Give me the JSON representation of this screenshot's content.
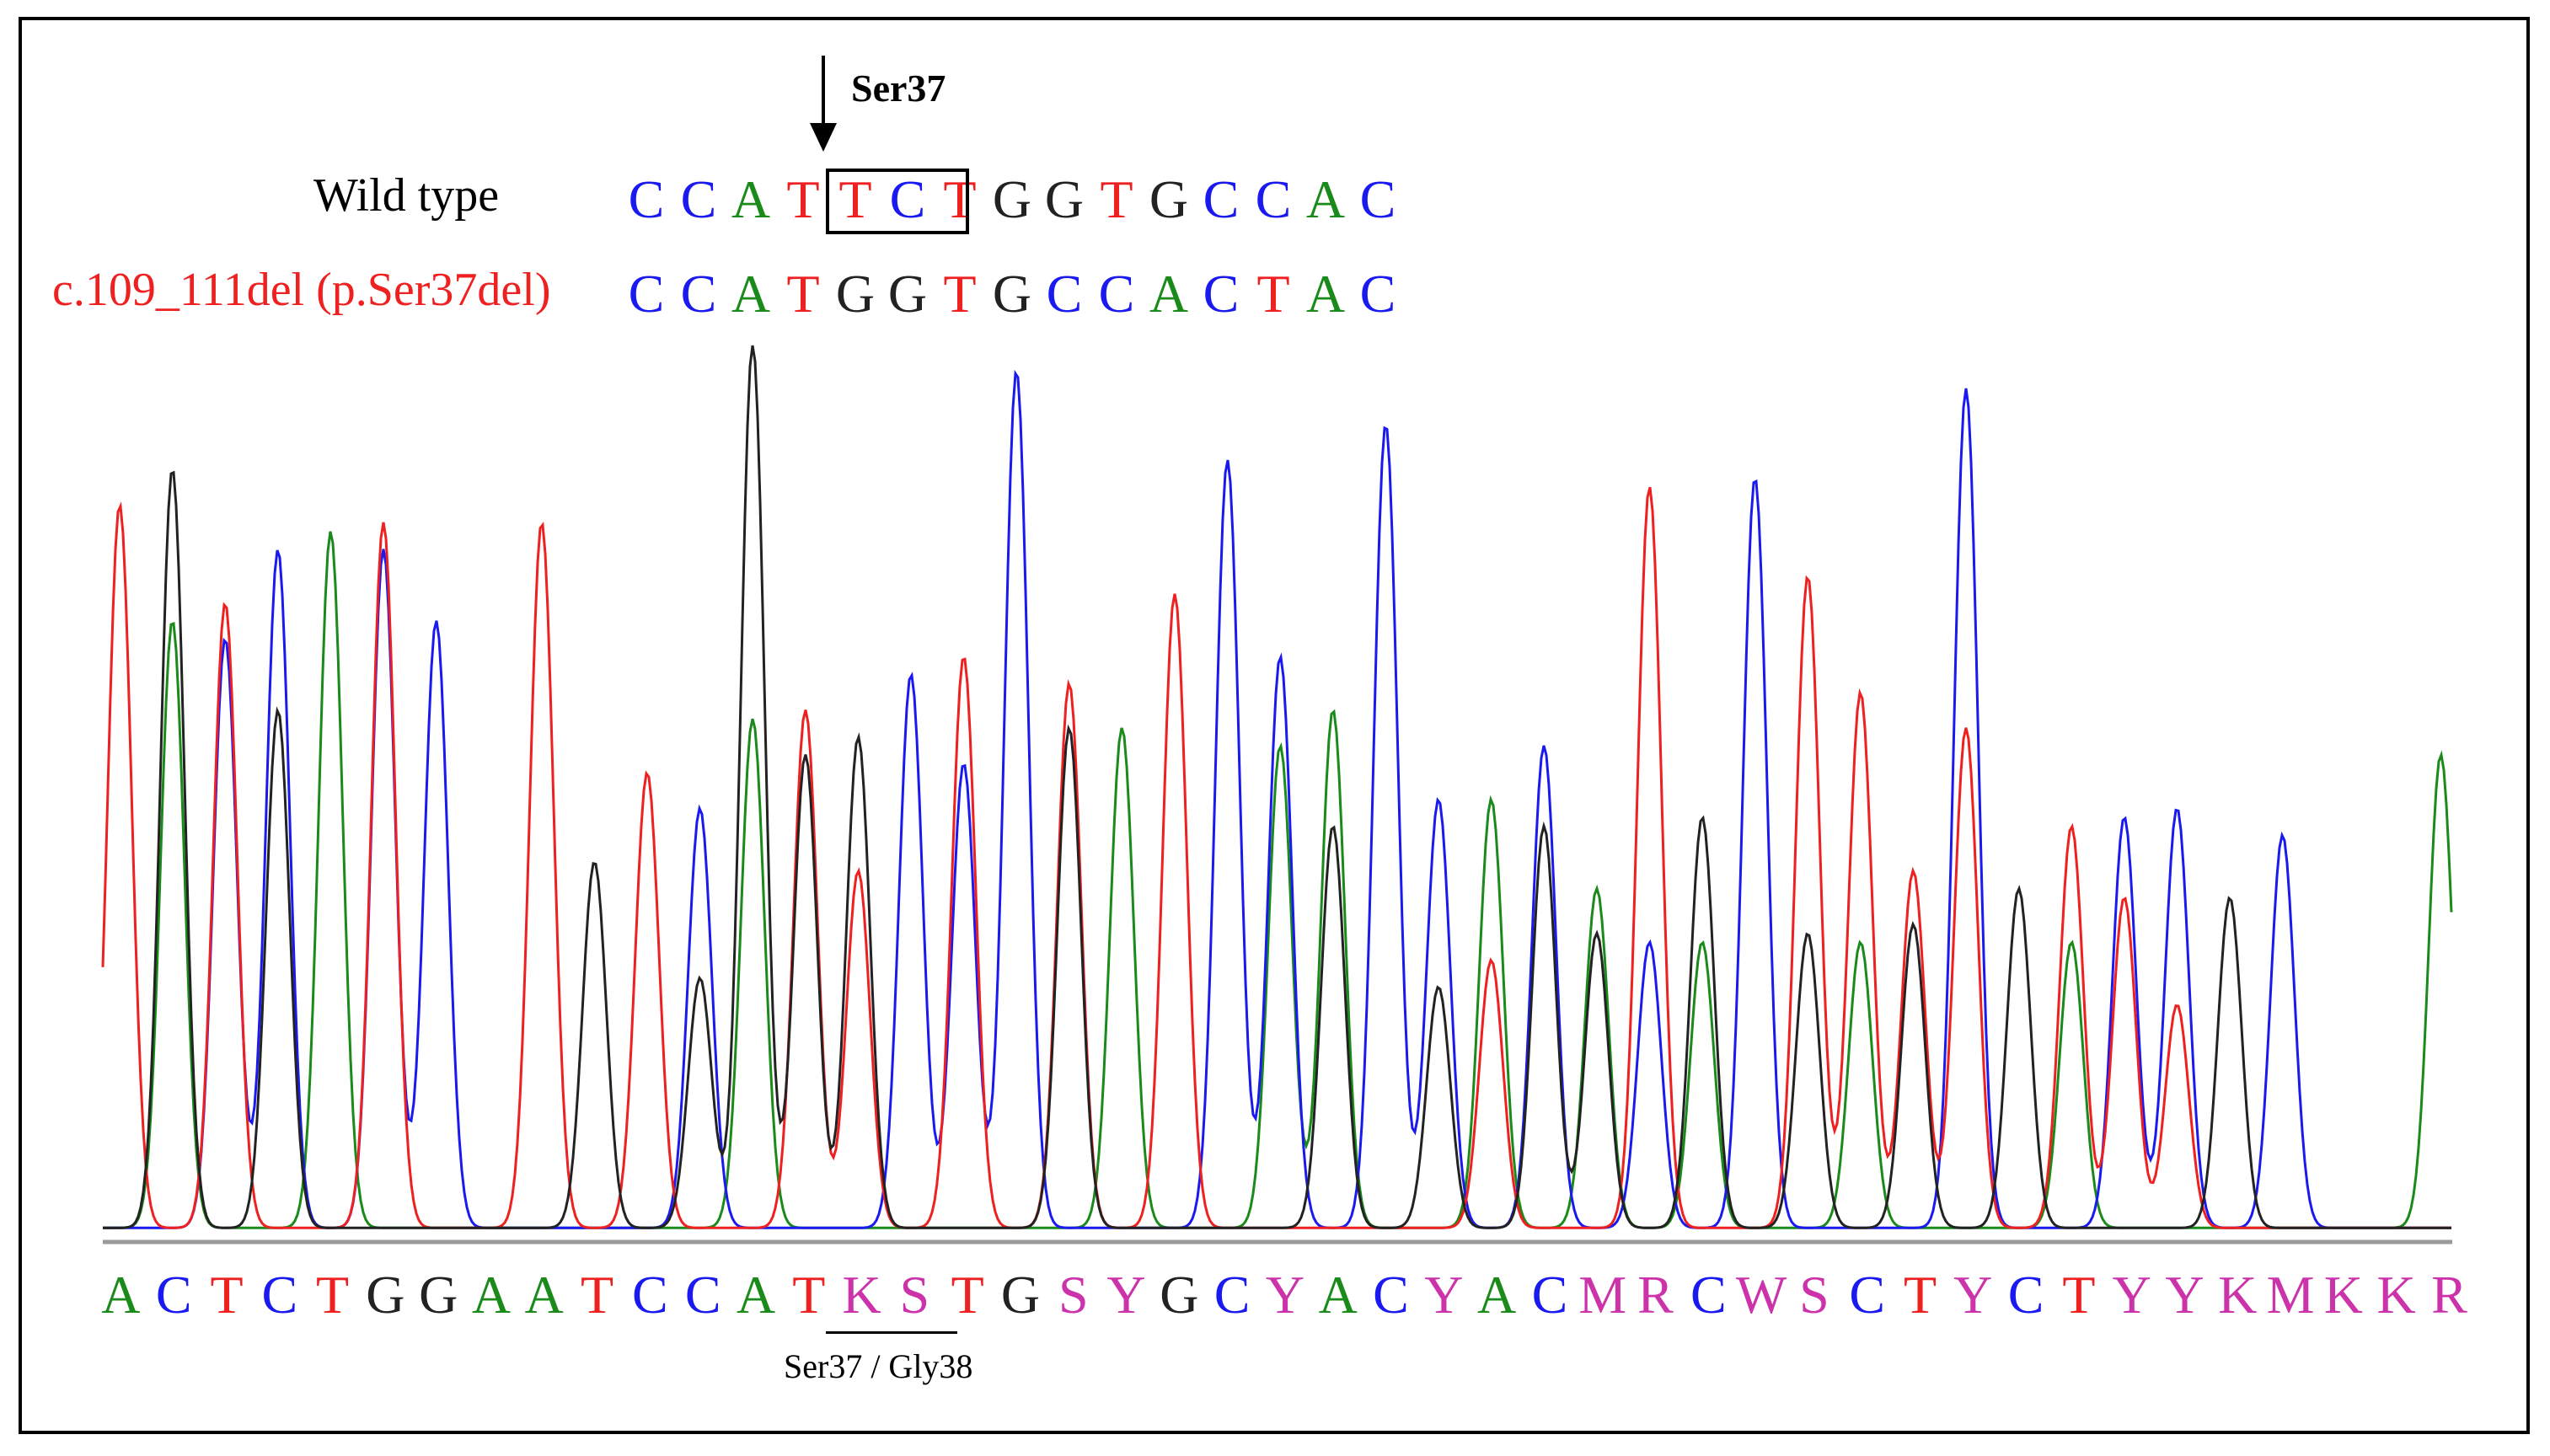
{
  "mutation_label": "Ser37",
  "wild_type_label": "Wild  type",
  "mutant_label": "c.109_111del (p.Ser37del)",
  "substitution_label": "Ser37 / Gly38",
  "colors": {
    "A": "#1a8a1a",
    "C": "#1a1af0",
    "G": "#222222",
    "T": "#ee2020",
    "ambig": "#cc33aa",
    "mutant_label": "#ee2020"
  },
  "wild_type_sequence": [
    "C",
    "C",
    "A",
    "T",
    "T",
    "C",
    "T",
    "G",
    "G",
    "T",
    "G",
    "C",
    "C",
    "A",
    "C"
  ],
  "mutant_sequence": [
    "C",
    "C",
    "A",
    "T",
    "G",
    "G",
    "T",
    "G",
    "C",
    "C",
    "A",
    "C",
    "T",
    "A",
    "C"
  ],
  "called_bases": [
    "A",
    "C",
    "T",
    "C",
    "T",
    "G",
    "G",
    "A",
    "A",
    "T",
    "C",
    "C",
    "A",
    "T",
    "K",
    "S",
    "T",
    "G",
    "S",
    "Y",
    "G",
    "C",
    "Y",
    "A",
    "C",
    "Y",
    "A",
    "C",
    "M",
    "R",
    "C",
    "W",
    "S",
    "C",
    "T",
    "Y",
    "C",
    "T",
    "Y",
    "Y",
    "K",
    "M",
    "K",
    "K",
    "R"
  ],
  "chart_data": {
    "type": "line",
    "title": "",
    "traces": [
      {
        "base": "A",
        "color": "#1a8a1a",
        "peaks": [
          [
            1,
            0.68
          ],
          [
            4,
            0.78
          ],
          [
            12,
            0.57
          ],
          [
            19,
            0.56
          ],
          [
            22,
            0.54
          ],
          [
            23,
            0.58
          ],
          [
            26,
            0.48
          ],
          [
            28,
            0.38
          ],
          [
            30,
            0.32
          ],
          [
            33,
            0.32
          ],
          [
            37,
            0.32
          ],
          [
            44,
            0.53
          ]
        ]
      },
      {
        "base": "C",
        "color": "#1a1af0",
        "peaks": [
          [
            2,
            0.66
          ],
          [
            3,
            0.76
          ],
          [
            5,
            0.76
          ],
          [
            6,
            0.68
          ],
          [
            11,
            0.47
          ],
          [
            15,
            0.62
          ],
          [
            16,
            0.52
          ],
          [
            17,
            0.96
          ],
          [
            21,
            0.86
          ],
          [
            22,
            0.64
          ],
          [
            24,
            0.9
          ],
          [
            25,
            0.48
          ],
          [
            27,
            0.54
          ],
          [
            29,
            0.32
          ],
          [
            31,
            0.84
          ],
          [
            35,
            0.94
          ],
          [
            38,
            0.46
          ],
          [
            39,
            0.47
          ],
          [
            41,
            0.44
          ]
        ]
      },
      {
        "base": "T",
        "color": "#ee2020",
        "peaks": [
          [
            0,
            0.81
          ],
          [
            2,
            0.7
          ],
          [
            5,
            0.79
          ],
          [
            8,
            0.79
          ],
          [
            10,
            0.51
          ],
          [
            13,
            0.58
          ],
          [
            14,
            0.4
          ],
          [
            16,
            0.64
          ],
          [
            18,
            0.61
          ],
          [
            20,
            0.71
          ],
          [
            26,
            0.3
          ],
          [
            29,
            0.83
          ],
          [
            32,
            0.73
          ],
          [
            33,
            0.6
          ],
          [
            34,
            0.4
          ],
          [
            35,
            0.56
          ],
          [
            37,
            0.45
          ],
          [
            38,
            0.37
          ],
          [
            39,
            0.25
          ]
        ]
      },
      {
        "base": "G",
        "color": "#222222",
        "peaks": [
          [
            1,
            0.85
          ],
          [
            3,
            0.58
          ],
          [
            9,
            0.41
          ],
          [
            11,
            0.28
          ],
          [
            12,
            0.99
          ],
          [
            13,
            0.53
          ],
          [
            14,
            0.55
          ],
          [
            18,
            0.56
          ],
          [
            23,
            0.45
          ],
          [
            25,
            0.27
          ],
          [
            27,
            0.45
          ],
          [
            28,
            0.33
          ],
          [
            30,
            0.46
          ],
          [
            32,
            0.33
          ],
          [
            34,
            0.34
          ],
          [
            36,
            0.38
          ],
          [
            40,
            0.37
          ]
        ]
      }
    ]
  }
}
